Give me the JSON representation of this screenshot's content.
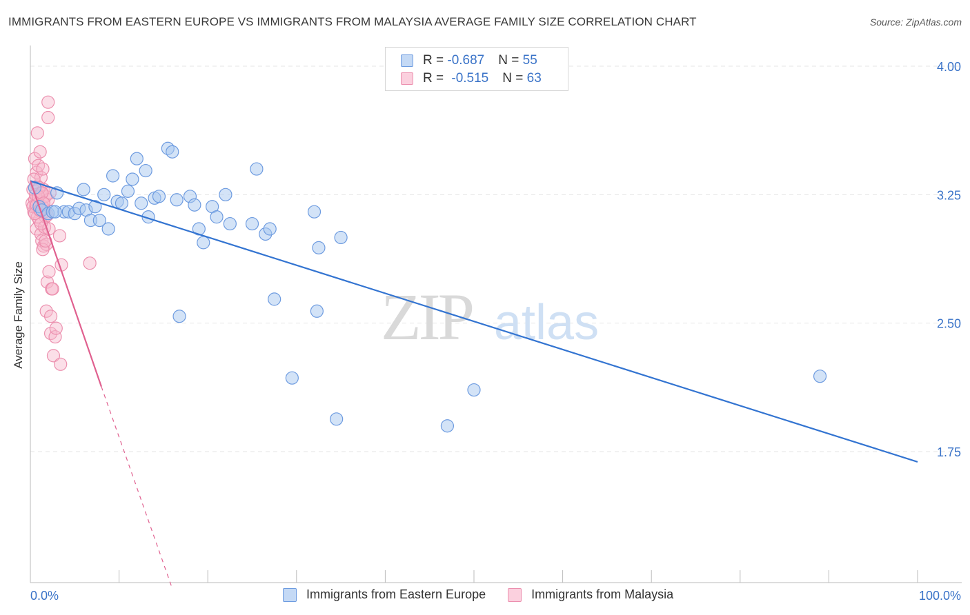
{
  "title": "IMMIGRANTS FROM EASTERN EUROPE VS IMMIGRANTS FROM MALAYSIA AVERAGE FAMILY SIZE CORRELATION CHART",
  "source": "Source: ZipAtlas.com",
  "watermark": {
    "zip": "ZIP",
    "atlas": "atlas"
  },
  "legend": {
    "rows": [
      {
        "r_label": "R = ",
        "r_value": "-0.687",
        "n_label": "N = ",
        "n_value": "55"
      },
      {
        "r_label": "R = ",
        "r_value": "-0.515",
        "n_label": "N = ",
        "n_value": "63"
      }
    ]
  },
  "colors": {
    "blue_fill": "#a8c8f0",
    "blue_stroke": "#6d9be0",
    "blue_line": "#3374d1",
    "pink_fill": "#f6b8cc",
    "pink_stroke": "#ec8fae",
    "pink_line": "#e0608f",
    "axis_text": "#3a73c8",
    "grid": "#e6e6e6"
  },
  "chart_data": {
    "type": "scatter",
    "title": "IMMIGRANTS FROM EASTERN EUROPE VS IMMIGRANTS FROM MALAYSIA AVERAGE FAMILY SIZE CORRELATION CHART",
    "xlabel": "",
    "ylabel": "Average Family Size",
    "xlim": [
      0,
      100
    ],
    "ylim": [
      1.0,
      4.1
    ],
    "x_tick_labels": [
      "0.0%",
      "100.0%"
    ],
    "y_ticks": [
      1.75,
      2.5,
      3.25,
      4.0
    ],
    "y_tick_labels": [
      "1.75",
      "2.50",
      "3.25",
      "4.00"
    ],
    "grid": true,
    "legend_position": "top-center",
    "series": [
      {
        "name": "Immigrants from Eastern Europe",
        "color": "blue",
        "trend": {
          "x": [
            0,
            100
          ],
          "y": [
            3.33,
            1.69
          ],
          "dashed_extension": false
        },
        "points": [
          [
            0.5,
            3.29
          ],
          [
            1.0,
            3.18
          ],
          [
            1.3,
            3.16
          ],
          [
            2.0,
            3.14
          ],
          [
            2.5,
            3.15
          ],
          [
            3.0,
            3.26
          ],
          [
            3.8,
            3.15
          ],
          [
            4.3,
            3.15
          ],
          [
            5.0,
            3.14
          ],
          [
            5.5,
            3.17
          ],
          [
            6.0,
            3.28
          ],
          [
            6.3,
            3.16
          ],
          [
            6.8,
            3.1
          ],
          [
            7.3,
            3.18
          ],
          [
            7.8,
            3.1
          ],
          [
            8.3,
            3.25
          ],
          [
            8.8,
            3.05
          ],
          [
            9.3,
            3.36
          ],
          [
            9.8,
            3.21
          ],
          [
            10.3,
            3.2
          ],
          [
            11.0,
            3.27
          ],
          [
            11.5,
            3.34
          ],
          [
            12.0,
            3.46
          ],
          [
            12.5,
            3.2
          ],
          [
            13.0,
            3.39
          ],
          [
            13.3,
            3.12
          ],
          [
            14.0,
            3.23
          ],
          [
            14.5,
            3.24
          ],
          [
            15.5,
            3.52
          ],
          [
            16.0,
            3.5
          ],
          [
            16.5,
            3.22
          ],
          [
            16.8,
            2.54
          ],
          [
            18.0,
            3.24
          ],
          [
            18.5,
            3.19
          ],
          [
            19.0,
            3.05
          ],
          [
            19.5,
            2.97
          ],
          [
            20.5,
            3.18
          ],
          [
            21.0,
            3.12
          ],
          [
            22.0,
            3.25
          ],
          [
            22.5,
            3.08
          ],
          [
            25.0,
            3.08
          ],
          [
            25.5,
            3.4
          ],
          [
            26.5,
            3.02
          ],
          [
            27.0,
            3.05
          ],
          [
            27.5,
            2.64
          ],
          [
            29.5,
            2.18
          ],
          [
            32.0,
            3.15
          ],
          [
            32.3,
            2.57
          ],
          [
            32.5,
            2.94
          ],
          [
            35.0,
            3.0
          ],
          [
            34.5,
            1.94
          ],
          [
            47.0,
            1.9
          ],
          [
            50.0,
            2.11
          ],
          [
            89.0,
            2.19
          ],
          [
            2.8,
            3.15
          ]
        ]
      },
      {
        "name": "Immigrants from Malaysia",
        "color": "pink",
        "trend": {
          "x": [
            0,
            8
          ],
          "y": [
            3.33,
            2.13
          ],
          "dashed_to": [
            16,
            0.95
          ]
        },
        "points": [
          [
            0.2,
            3.2
          ],
          [
            0.3,
            3.28
          ],
          [
            0.4,
            3.15
          ],
          [
            0.5,
            3.46
          ],
          [
            0.5,
            3.22
          ],
          [
            0.6,
            3.18
          ],
          [
            0.7,
            3.38
          ],
          [
            0.7,
            3.05
          ],
          [
            0.8,
            3.61
          ],
          [
            0.8,
            3.3
          ],
          [
            0.9,
            3.42
          ],
          [
            0.9,
            3.2
          ],
          [
            1.0,
            3.16
          ],
          [
            1.0,
            3.1
          ],
          [
            1.1,
            3.5
          ],
          [
            1.1,
            3.26
          ],
          [
            1.2,
            3.35
          ],
          [
            1.2,
            3.02
          ],
          [
            1.3,
            3.21
          ],
          [
            1.3,
            2.98
          ],
          [
            1.4,
            3.4
          ],
          [
            1.4,
            3.18
          ],
          [
            1.5,
            3.28
          ],
          [
            1.5,
            2.95
          ],
          [
            1.6,
            3.15
          ],
          [
            1.6,
            3.06
          ],
          [
            1.7,
            3.24
          ],
          [
            1.7,
            3.12
          ],
          [
            1.8,
            2.96
          ],
          [
            1.8,
            2.57
          ],
          [
            1.9,
            3.13
          ],
          [
            1.9,
            2.74
          ],
          [
            2.0,
            3.79
          ],
          [
            2.0,
            3.7
          ],
          [
            2.0,
            3.22
          ],
          [
            2.1,
            3.05
          ],
          [
            2.1,
            2.8
          ],
          [
            2.2,
            3.26
          ],
          [
            2.3,
            2.44
          ],
          [
            2.3,
            2.54
          ],
          [
            2.4,
            2.7
          ],
          [
            2.5,
            2.7
          ],
          [
            2.6,
            2.31
          ],
          [
            2.8,
            2.42
          ],
          [
            2.9,
            2.47
          ],
          [
            3.3,
            3.01
          ],
          [
            3.4,
            2.26
          ],
          [
            3.5,
            2.84
          ],
          [
            6.7,
            2.85
          ],
          [
            0.4,
            3.34
          ],
          [
            0.6,
            3.25
          ],
          [
            0.8,
            3.12
          ],
          [
            1.0,
            3.29
          ],
          [
            1.2,
            3.08
          ],
          [
            1.4,
            2.93
          ],
          [
            0.3,
            3.18
          ],
          [
            0.5,
            3.14
          ],
          [
            0.7,
            3.19
          ],
          [
            0.9,
            3.24
          ],
          [
            1.1,
            3.16
          ],
          [
            1.3,
            3.26
          ],
          [
            1.5,
            3.2
          ],
          [
            1.7,
            2.98
          ]
        ]
      }
    ]
  },
  "y_axis_title": "Average Family Size"
}
